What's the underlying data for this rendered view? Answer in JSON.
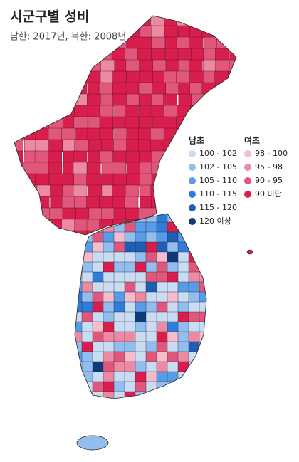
{
  "title": "시군구별 성비",
  "subtitle": "남한: 2017년, 북한: 2008년",
  "legend": {
    "groups": [
      {
        "title": "남초",
        "items": [
          {
            "label": "100 - 102",
            "color": "#c9dcf2"
          },
          {
            "label": "102 - 105",
            "color": "#93bdec"
          },
          {
            "label": "105 - 110",
            "color": "#5a9be6"
          },
          {
            "label": "110 - 115",
            "color": "#2f7dd8"
          },
          {
            "label": "115 - 120",
            "color": "#1c5fb3"
          },
          {
            "label": "120 이상",
            "color": "#0d3a78"
          }
        ]
      },
      {
        "title": "여초",
        "items": [
          {
            "label": "98 - 100",
            "color": "#f5bccb"
          },
          {
            "label": "95 - 98",
            "color": "#ec8aa4"
          },
          {
            "label": "90 - 95",
            "color": "#e1577b"
          },
          {
            "label": "90 미만",
            "color": "#d81e4c"
          }
        ]
      }
    ]
  }
}
